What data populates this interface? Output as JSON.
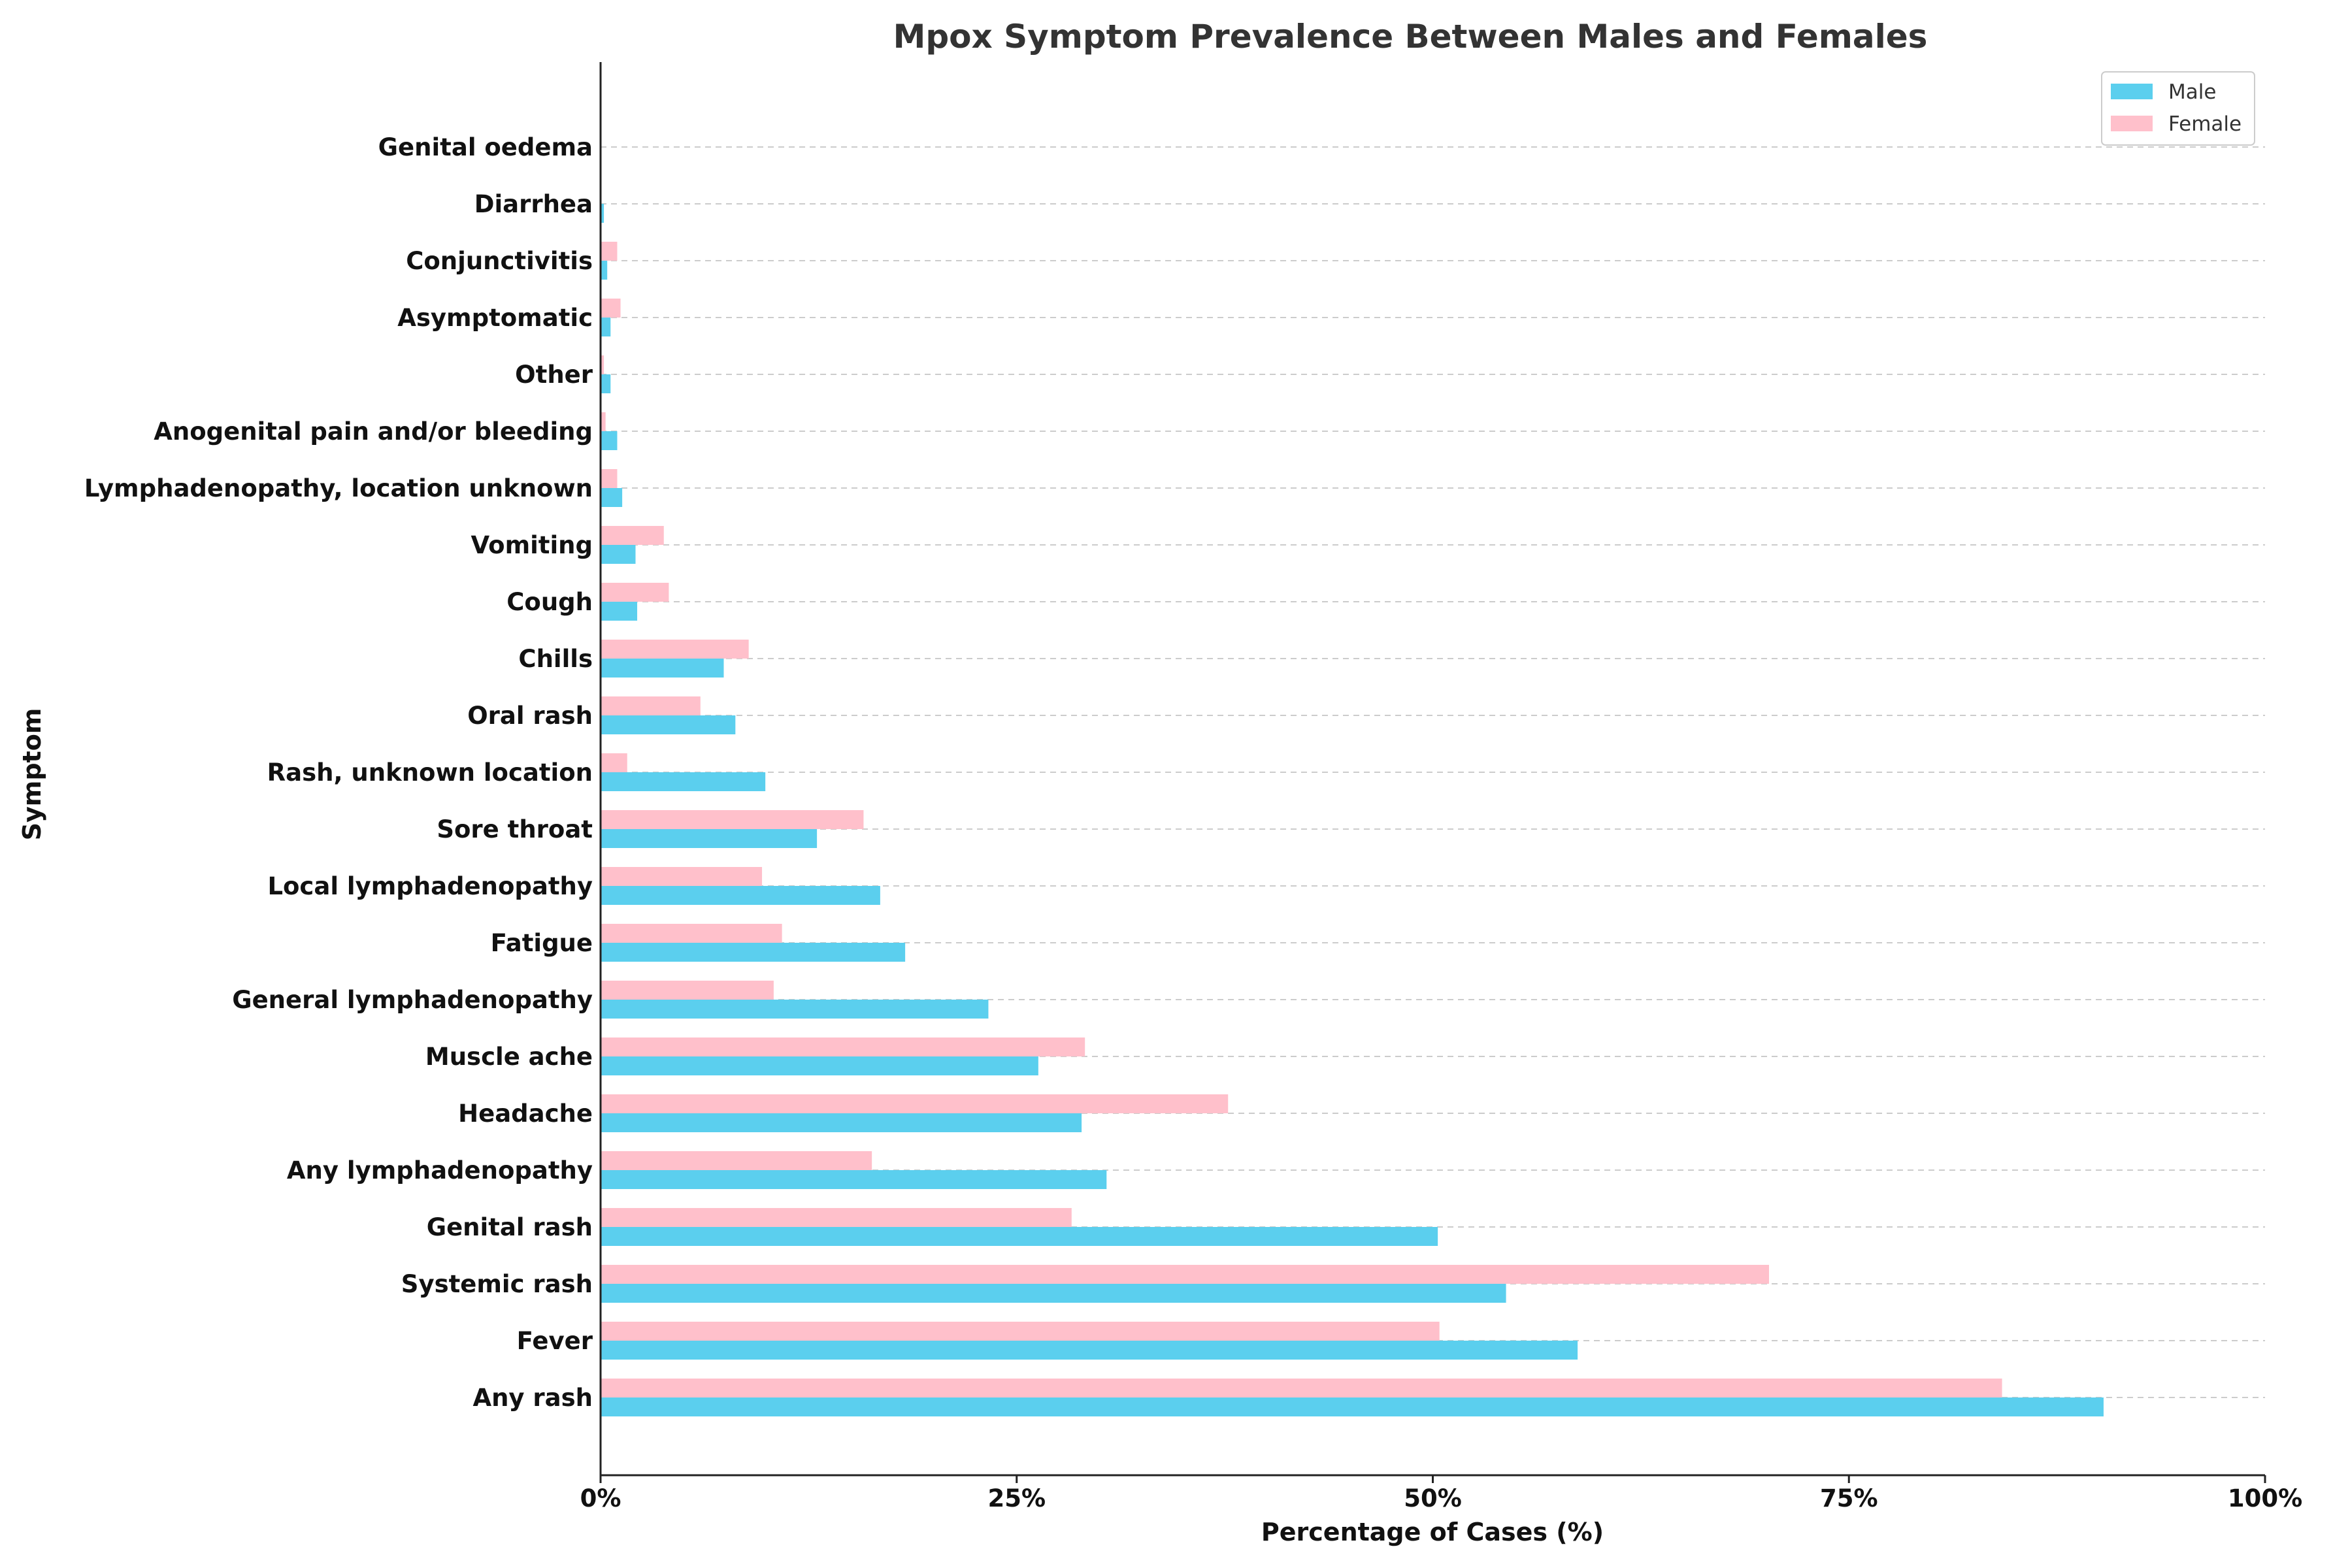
{
  "chart_data": {
    "type": "bar",
    "orientation": "horizontal",
    "title": "Mpox Symptom Prevalence Between Males and Females",
    "xlabel": "Percentage of Cases (%)",
    "ylabel": "Symptom",
    "xlim": [
      0,
      100
    ],
    "x_ticks": [
      0,
      25,
      50,
      75,
      100
    ],
    "x_tick_labels": [
      "0%",
      "25%",
      "50%",
      "75%",
      "100%"
    ],
    "grid": "horizontal dashed",
    "legend_position": "top-right",
    "categories": [
      "Any rash",
      "Fever",
      "Systemic rash",
      "Genital rash",
      "Any lymphadenopathy",
      "Headache",
      "Muscle ache",
      "General lymphadenopathy",
      "Fatigue",
      "Local lymphadenopathy",
      "Sore throat",
      "Rash, unknown location",
      "Oral rash",
      "Chills",
      "Cough",
      "Vomiting",
      "Lymphadenopathy, location unknown",
      "Anogenital pain and/or bleeding",
      "Other",
      "Asymptomatic",
      "Conjunctivitis",
      "Diarrhea",
      "Genital oedema"
    ],
    "series": [
      {
        "name": "Male",
        "color": "#5BCFEE",
        "values": [
          90.3,
          58.7,
          54.4,
          50.3,
          30.4,
          28.9,
          26.3,
          23.3,
          18.3,
          16.8,
          13.0,
          9.9,
          8.1,
          7.4,
          2.2,
          2.1,
          1.3,
          1.0,
          0.6,
          0.6,
          0.4,
          0.2,
          0.0
        ]
      },
      {
        "name": "Female",
        "color": "#FFC0CB",
        "values": [
          84.2,
          50.4,
          70.2,
          28.3,
          16.3,
          37.7,
          29.1,
          10.4,
          10.9,
          9.7,
          15.8,
          1.6,
          6.0,
          8.9,
          4.1,
          3.8,
          1.0,
          0.3,
          0.2,
          1.2,
          1.0,
          0.0,
          0.0
        ]
      }
    ]
  }
}
